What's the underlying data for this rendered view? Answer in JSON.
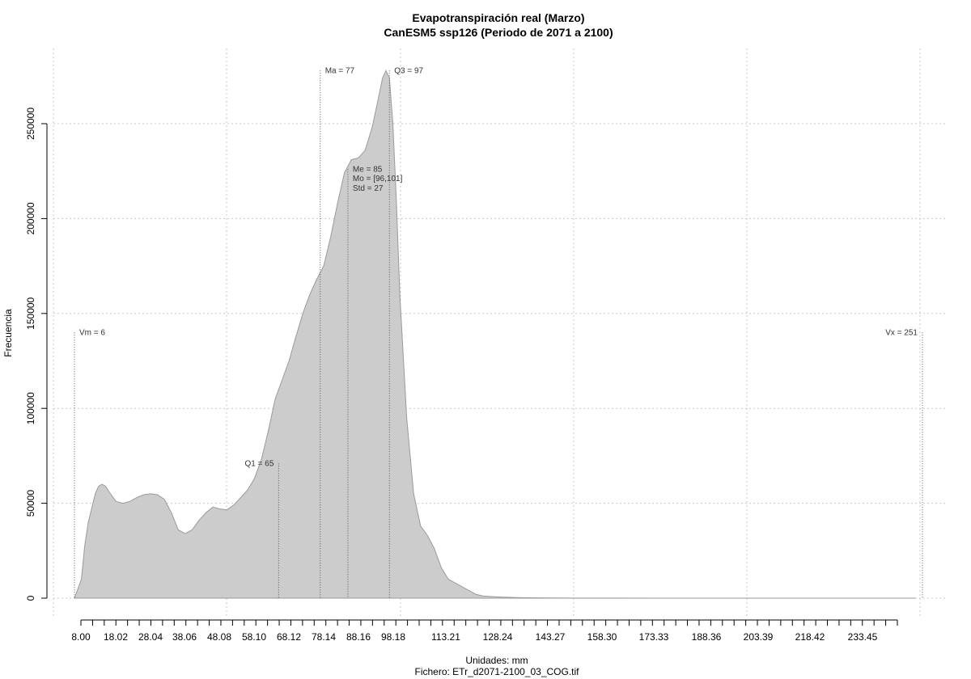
{
  "chart_data": {
    "type": "area",
    "title": "Evapotranspiración real (Marzo)",
    "subtitle": "CanESM5 ssp126 (Periodo de 2071 a 2100)",
    "xlabel": "Unidades: mm",
    "caption": "Fichero: ETr_d2071-2100_03_COG.tif",
    "ylabel": "Frecuencia",
    "xlim": [
      6,
      251
    ],
    "ylim": [
      0,
      280000
    ],
    "x_tick_labels": [
      "8.00",
      "18.02",
      "28.04",
      "38.06",
      "48.08",
      "58.10",
      "68.12",
      "78.14",
      "88.16",
      "98.18",
      "113.21",
      "128.24",
      "143.27",
      "158.30",
      "173.33",
      "188.36",
      "203.39",
      "218.42",
      "233.45"
    ],
    "y_ticks": [
      0,
      50000,
      100000,
      150000,
      200000,
      250000
    ],
    "grid": true,
    "series": [
      {
        "x": [
          6,
          8,
          9,
          10,
          12,
          13,
          14,
          15,
          16,
          18,
          20,
          22,
          24,
          26,
          28,
          30,
          32,
          34,
          36,
          38,
          40,
          42,
          44,
          46,
          48,
          50,
          52,
          54,
          56,
          58,
          60,
          62,
          64,
          66,
          68,
          70,
          72,
          74,
          76,
          78,
          80,
          82,
          84,
          86,
          88,
          90,
          92,
          94,
          95,
          96,
          97,
          98,
          99,
          100,
          102,
          104,
          106,
          108,
          110,
          112,
          114,
          116,
          118,
          120,
          122,
          124,
          126,
          128,
          130,
          135,
          140,
          150,
          160,
          180,
          200,
          220,
          240,
          249
        ],
        "y": [
          0,
          10000,
          28000,
          40000,
          55000,
          59000,
          60000,
          59000,
          56000,
          51000,
          50000,
          51000,
          53000,
          54500,
          55000,
          54500,
          52000,
          45000,
          36000,
          34000,
          36000,
          41000,
          45000,
          48000,
          47000,
          46500,
          49000,
          53000,
          57000,
          63000,
          73000,
          88000,
          105000,
          115000,
          125000,
          138000,
          150000,
          160000,
          168000,
          175000,
          190000,
          208000,
          224000,
          231000,
          232000,
          236000,
          248000,
          265000,
          274000,
          278000,
          274000,
          250000,
          210000,
          160000,
          95000,
          55000,
          38000,
          33000,
          26000,
          16000,
          10000,
          8000,
          6000,
          4000,
          2000,
          1200,
          900,
          700,
          500,
          250,
          150,
          60,
          30,
          10,
          5,
          2,
          1,
          0
        ]
      }
    ],
    "colors": {
      "fill": "#cccccc",
      "outline": "#9a9a9a",
      "grid": "#c8c8c8",
      "marker_line": "#555555"
    },
    "annotations": [
      {
        "label": "Vm = 6",
        "x": 6,
        "y_top": 140000,
        "anchor": "right"
      },
      {
        "label": "Q1 = 65",
        "x": 65,
        "y_top": 71000,
        "anchor": "left"
      },
      {
        "label": "Ma = 77",
        "x": 77,
        "y_top": 278000,
        "anchor": "right"
      },
      {
        "label": "Me = 85",
        "x": 85,
        "y_top": 226000,
        "anchor": "right"
      },
      {
        "label": "Mo = [96,101]",
        "x": 85,
        "y_top": 221000,
        "anchor": "right"
      },
      {
        "label": "Std = 27",
        "x": 85,
        "y_top": 216000,
        "anchor": "right"
      },
      {
        "label": "Q3 = 97",
        "x": 97,
        "y_top": 278000,
        "anchor": "right"
      },
      {
        "label": "Vx = 251",
        "x": 251,
        "y_top": 140000,
        "anchor": "left"
      }
    ]
  }
}
